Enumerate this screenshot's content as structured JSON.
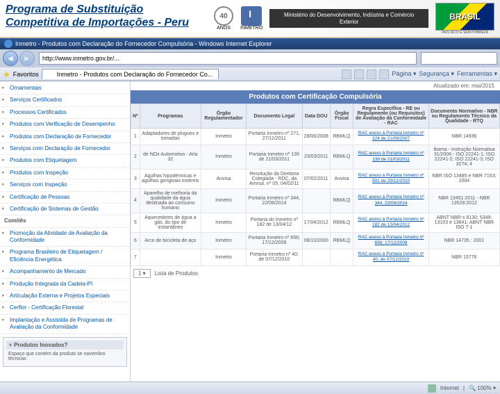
{
  "header": {
    "title": "Programa de Substituição Competitiva de Importações - Peru",
    "ministry": "Ministério do\nDesenvolvimento, Indústria\ne Comércio Exterior",
    "brasil": "BRASIL",
    "brasil_sub": "PAÍS RICO E SEM POBREZA",
    "logo40": "40",
    "logo40_sub": "ANOS",
    "inmetro_sub": "INMETRO"
  },
  "browser": {
    "windowTitle": "Inmetro - Produtos com Declaração do Fornecedor Compulsória - Windows Internet Explorer",
    "url": "http://www.inmetro.gov.br/...",
    "tab": "Inmetro - Produtos com Declaração do Fornecedor Co...",
    "favorites": "Favoritos",
    "menu": {
      "pagina": "Página ▾",
      "seguranca": "Segurança ▾",
      "ferramentas": "Ferramentas ▾"
    }
  },
  "sidebar": {
    "items": [
      "Ornamentais",
      "Serviços Certificados",
      "Processos Certificados",
      "Produtos com Verificação de Desempenho",
      "Produtos com Declaração de Fornecedor",
      "Serviços com Declaração de Fornecedor",
      "Produtos com Etiquetagem",
      "Produtos com Inspeção",
      "Serviços com Inspeção",
      "Certificação de Pessoas",
      "Certificação de Sistemas de Gestão"
    ],
    "cat1": "Comitês",
    "items2": [
      "Promoção da Atividade de Avaliação da Conformidade",
      "Programa Brasileiro de Etiquetagem / Eficiência Energética"
    ],
    "items3": [
      "Acompanhamento de Mercado",
      "Produção Integrada da Cadeia-PI",
      "Articulação Externa e Projetos Especiais",
      "Cerflor - Certificação Florestal",
      "Implantação e Assistida de Programas de Avaliação da Conformidade"
    ],
    "infobox": {
      "title": "Produtos Inovados?",
      "text": "Espaço que contém da produto se novembro técnicas"
    }
  },
  "main": {
    "updated": "Atualizado em: mai/2015",
    "sectionTitle": "Produtos com Certificação Compulsória",
    "columns": [
      "Nº",
      "Programas",
      "Órgão Regulamentador",
      "Documento Legal",
      "Data DOU",
      "Órgão Fiscal",
      "Regra Específica - RE ou Regulamento (ou Requisitos) de Avaliação da Conformidade - RAC",
      "Documento Normativo - NBR ou Regulamento Técnico da Qualidade - RTQ"
    ],
    "rows": [
      {
        "n": "1",
        "prog": "Adaptadores de plugues e tomadas",
        "org": "Inmetro",
        "doc": "Portaria Inmetro nº 271, 27/11/2011",
        "data": "28/06/2008",
        "fisc": "RBMLQ",
        "rac": "RAC anexo à Portaria Inmetro nº 324 de 21/09/2007",
        "norm": "NBR 14936"
      },
      {
        "n": "2",
        "prog": "de NOx Automotivo - Arla 32",
        "org": "Inmetro",
        "doc": "Portaria Inmetro nº 139 de 21/03/2011",
        "data": "23/03/2011",
        "fisc": "RBMLQ",
        "rac": "RAC anexo à Portaria Inmetro nº 139 de 21/03/2011",
        "norm": "Ibama - Instrução Normativa 31/2006 - ISO 22241-1; ISO 22241-2; ISO 22241-3; ISO 3274; 4"
      },
      {
        "n": "3",
        "prog": "Agulhas hipodérmicas e agulhas gengivais estéreis",
        "org": "Anvisa",
        "doc": "Resolução da Diretoria Colegiada - RDC, da Anvisa, nº 05, 04/02/11",
        "data": "07/02/2011",
        "fisc": "Anvisa",
        "rac": "RAC anexo à Portaria Inmetro nº 501 de 29/12/2010",
        "norm": "NBR ISO 13485 e NBR 7153; 2004"
      },
      {
        "n": "4",
        "prog": "Aparelho de melhoria da qualidade da água destinada ao consumo humano",
        "org": "Inmetro",
        "doc": "Portaria Inmetro nº 344, 22/08/2014",
        "data": "",
        "fisc": "RBMLQ",
        "rac": "RAC anexo à Portaria Inmetro nº 344, 22/08/2014",
        "norm": "NBR 13451:2011 - NBR 13528:2012"
      },
      {
        "n": "5",
        "prog": "Aquecedores de água a gás, do tipo de instantâneo",
        "org": "Inmetro",
        "doc": "Portaria do Inmetro nº 182 de 13/04/12",
        "data": "17/04/2012",
        "fisc": "RBMLQ",
        "rac": "RAC anexo à Portaria Inmetro nº 182 de 13/04/2012",
        "norm": "ABNT NBR-s 8130; 5349; 13103 e 13641; ABNT NBR ISO 7-1"
      },
      {
        "n": "6",
        "prog": "Arco de bicicleta de aço",
        "org": "Inmetro",
        "doc": "Portaria Inmetro nº 656; 17/12/2009",
        "data": "08/10/2000",
        "fisc": "RBMLQ",
        "rac": "RAC anexo à Portaria Inmetro nº 656; 17/12/2009",
        "norm": "NBR 14735 : 2001"
      },
      {
        "n": "7",
        "prog": "",
        "org": "Inmetro",
        "doc": "Portaria Inmetro nº 40; de 07/12/2010",
        "data": "",
        "fisc": "",
        "rac": "RAC anexo à Portaria Inmetro nº 40; de 07/12/2010",
        "norm": "NBR 15776"
      }
    ],
    "pager": {
      "page": "1 ▾",
      "listLabel": "Lista de Produtos"
    }
  },
  "status": {
    "zone": "Internet",
    "zoom": "100%"
  },
  "colors": {
    "headerBlue": "#003d7a",
    "sectionBlue": "#5a7db8",
    "link": "#0055aa"
  }
}
